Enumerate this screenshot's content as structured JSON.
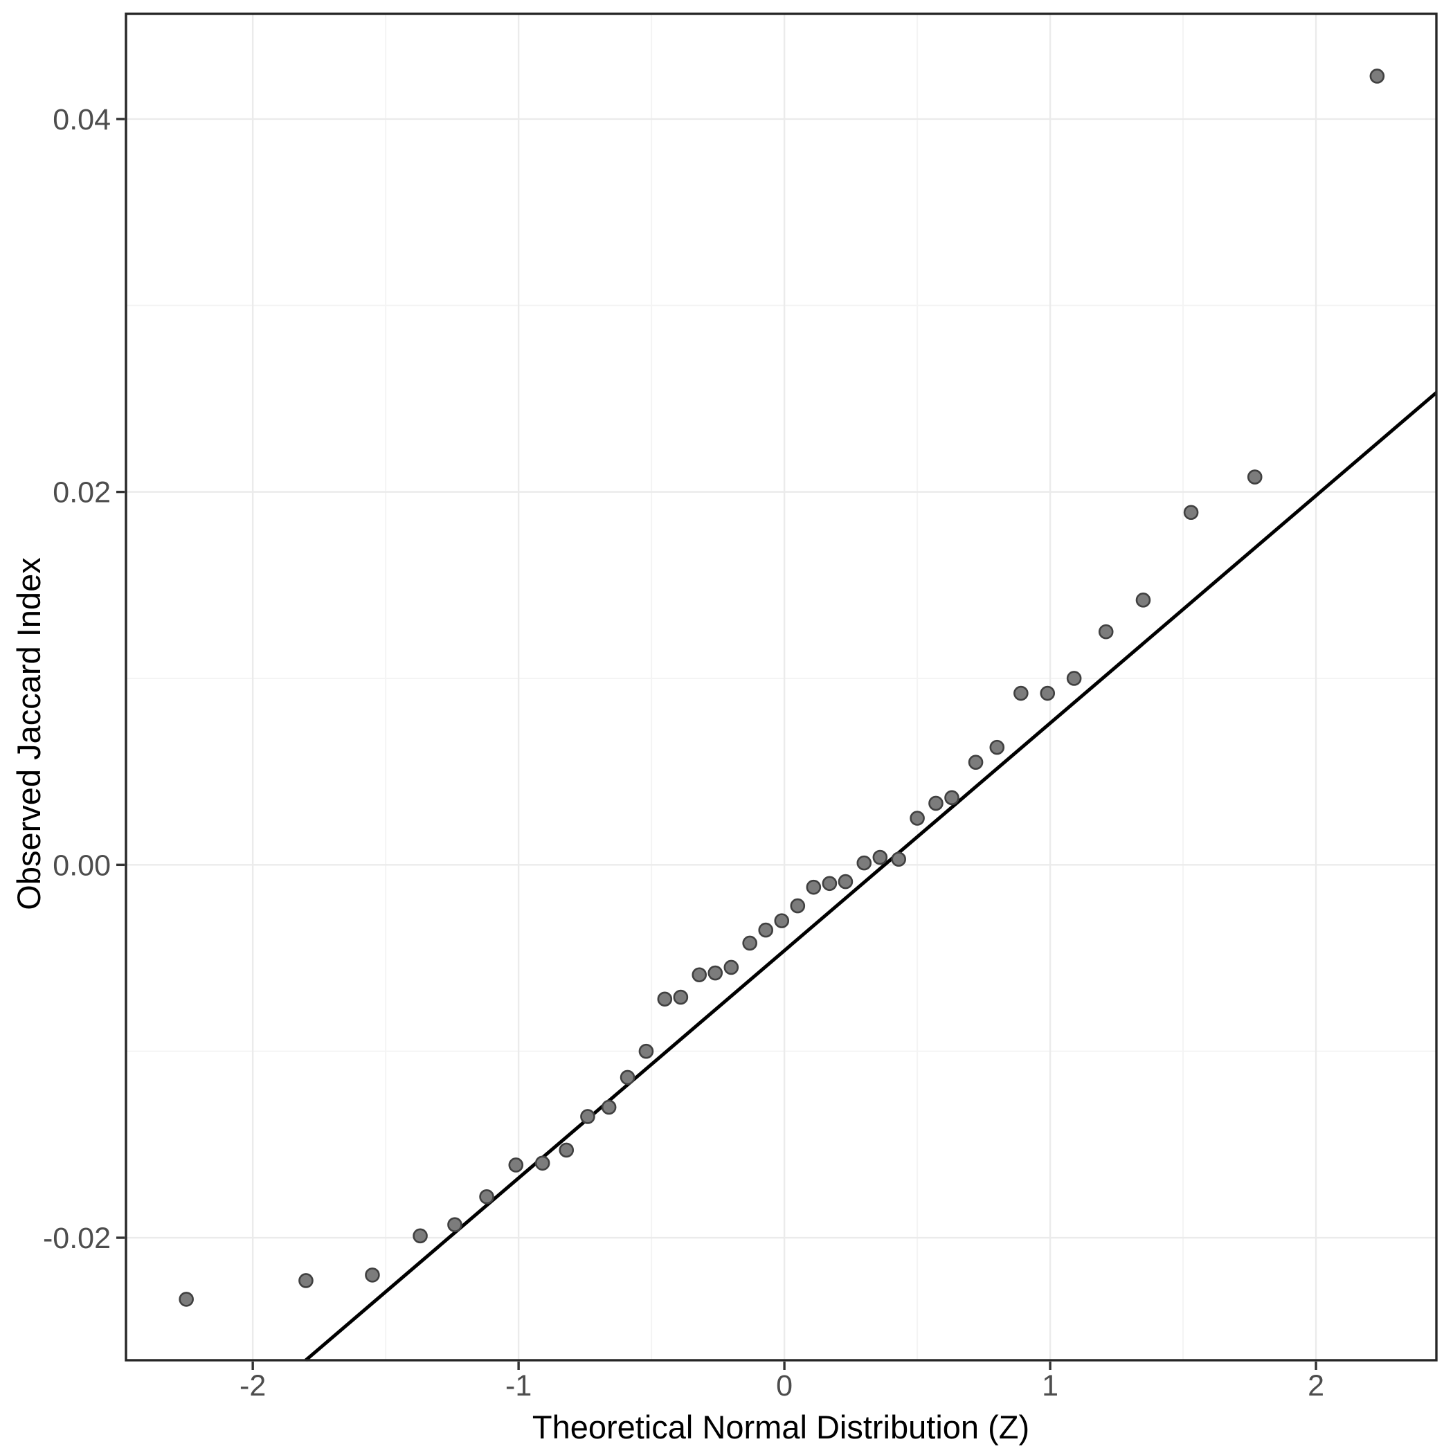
{
  "chart_data": {
    "type": "scatter",
    "subtype": "qq-plot",
    "title": "",
    "xlabel": "Theoretical Normal Distribution (Z)",
    "ylabel": "Observed Jaccard Index",
    "xlim": [
      -2.477,
      2.453
    ],
    "ylim": [
      -0.02657,
      0.04564
    ],
    "grid": "major+minor",
    "legend": "none",
    "x_axis": {
      "tick_values": [
        -2,
        -1,
        0,
        1,
        2
      ],
      "tick_labels": [
        "-2",
        "-1",
        "0",
        "1",
        "2"
      ],
      "minor_tick_values": [
        -1.5,
        -0.5,
        0.5,
        1.5
      ]
    },
    "y_axis": {
      "tick_values": [
        0.04,
        0.02,
        0.0,
        -0.02
      ],
      "tick_labels": [
        "0.04",
        "0.02",
        "0.00",
        "-0.02"
      ],
      "minor_tick_values": [
        0.03,
        0.01,
        -0.01
      ]
    },
    "points": [
      [
        -2.25,
        -0.0233
      ],
      [
        -1.8,
        -0.0223
      ],
      [
        -1.55,
        -0.022
      ],
      [
        -1.37,
        -0.0199
      ],
      [
        -1.24,
        -0.0193
      ],
      [
        -1.12,
        -0.0178
      ],
      [
        -1.01,
        -0.0161
      ],
      [
        -0.91,
        -0.016
      ],
      [
        -0.82,
        -0.0153
      ],
      [
        -0.74,
        -0.0135
      ],
      [
        -0.66,
        -0.013
      ],
      [
        -0.59,
        -0.0114
      ],
      [
        -0.52,
        -0.01
      ],
      [
        -0.45,
        -0.0072
      ],
      [
        -0.39,
        -0.0071
      ],
      [
        -0.32,
        -0.0059
      ],
      [
        -0.26,
        -0.0058
      ],
      [
        -0.2,
        -0.0055
      ],
      [
        -0.13,
        -0.0042
      ],
      [
        -0.07,
        -0.0035
      ],
      [
        -0.01,
        -0.003
      ],
      [
        0.05,
        -0.0022
      ],
      [
        0.11,
        -0.0012
      ],
      [
        0.17,
        -0.001
      ],
      [
        0.23,
        -0.0009
      ],
      [
        0.3,
        0.0001
      ],
      [
        0.36,
        0.0004
      ],
      [
        0.43,
        0.0003
      ],
      [
        0.5,
        0.0025
      ],
      [
        0.57,
        0.0033
      ],
      [
        0.63,
        0.0036
      ],
      [
        0.72,
        0.0055
      ],
      [
        0.8,
        0.0063
      ],
      [
        0.89,
        0.0092
      ],
      [
        0.99,
        0.0092
      ],
      [
        1.09,
        0.01
      ],
      [
        1.21,
        0.0125
      ],
      [
        1.35,
        0.0142
      ],
      [
        1.53,
        0.0189
      ],
      [
        1.77,
        0.0208
      ],
      [
        2.23,
        0.0423
      ]
    ],
    "qq_line": {
      "slope": 0.0122,
      "intercept": -0.0046
    },
    "colors": {
      "background": "#ffffff",
      "panel_border": "#262626",
      "grid_major": "#ebebeb",
      "grid_minor": "#f4f4f4",
      "tick_mark": "#333333",
      "tick_label": "#4d4d4d",
      "axis_title": "#000000",
      "point_fill": "#7c7c7c",
      "point_stroke": "#404040",
      "line": "#000000"
    }
  }
}
